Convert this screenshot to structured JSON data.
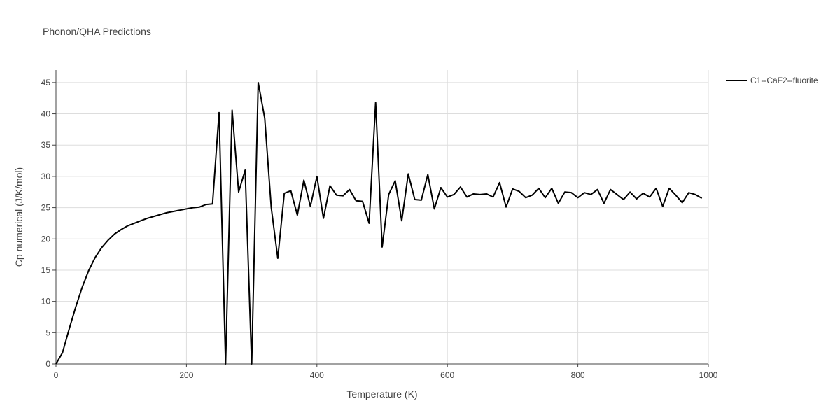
{
  "chart_data": {
    "type": "line",
    "title": "Phonon/QHA Predictions",
    "x_label": "Temperature (K)",
    "y_label": "Cp numerical (J/K/mol)",
    "xlim": [
      0,
      1000
    ],
    "xticks": [
      0,
      200,
      400,
      600,
      800,
      1000
    ],
    "ylim": [
      0,
      47
    ],
    "yticks": [
      0,
      5,
      10,
      15,
      20,
      25,
      30,
      35,
      40,
      45
    ],
    "grid": true,
    "legend": "right",
    "x": [
      0,
      10,
      20,
      30,
      40,
      50,
      60,
      70,
      80,
      90,
      100,
      110,
      120,
      130,
      140,
      150,
      160,
      170,
      180,
      190,
      200,
      210,
      220,
      230,
      240,
      250,
      260,
      270,
      280,
      290,
      300,
      310,
      320,
      330,
      340,
      350,
      360,
      370,
      380,
      390,
      400,
      410,
      420,
      430,
      440,
      450,
      460,
      470,
      480,
      490,
      500,
      510,
      520,
      530,
      540,
      550,
      560,
      570,
      580,
      590,
      600,
      610,
      620,
      630,
      640,
      650,
      660,
      670,
      680,
      690,
      700,
      710,
      720,
      730,
      740,
      750,
      760,
      770,
      780,
      790,
      800,
      810,
      820,
      830,
      840,
      850,
      860,
      870,
      880,
      890,
      900,
      910,
      920,
      930,
      940,
      950,
      960,
      970,
      980,
      990
    ],
    "series": [
      {
        "name": "C1--CaF2--fluorite",
        "color": "#000000",
        "values": [
          0,
          1.8,
          5.5,
          9,
          12.2,
          14.9,
          17,
          18.6,
          19.8,
          20.8,
          21.5,
          22.1,
          22.5,
          22.9,
          23.3,
          23.6,
          23.9,
          24.2,
          24.4,
          24.6,
          24.8,
          25.0,
          25.1,
          25.5,
          25.6,
          40.2,
          0,
          40.6,
          27.5,
          31.0,
          0,
          45,
          39.3,
          25,
          16.9,
          27.3,
          27.7,
          23.8,
          29.4,
          25.2,
          30.0,
          23.3,
          28.5,
          27.0,
          26.9,
          27.9,
          26.1,
          26.0,
          22.5,
          41.8,
          18.7,
          27.1,
          29.3,
          22.9,
          30.4,
          26.3,
          26.2,
          30.3,
          24.8,
          28.2,
          26.7,
          27.1,
          28.3,
          26.7,
          27.2,
          27.1,
          27.2,
          26.7,
          29.0,
          25.1,
          28.0,
          27.6,
          26.6,
          27.0,
          28.1,
          26.6,
          28.1,
          25.7,
          27.5,
          27.4,
          26.6,
          27.4,
          27.1,
          27.9,
          25.7,
          27.9,
          27.1,
          26.3,
          27.5,
          26.4,
          27.3,
          26.7,
          28.1,
          25.2,
          28.1,
          27.0,
          25.8,
          27.4,
          27.1,
          26.5
        ]
      }
    ]
  }
}
